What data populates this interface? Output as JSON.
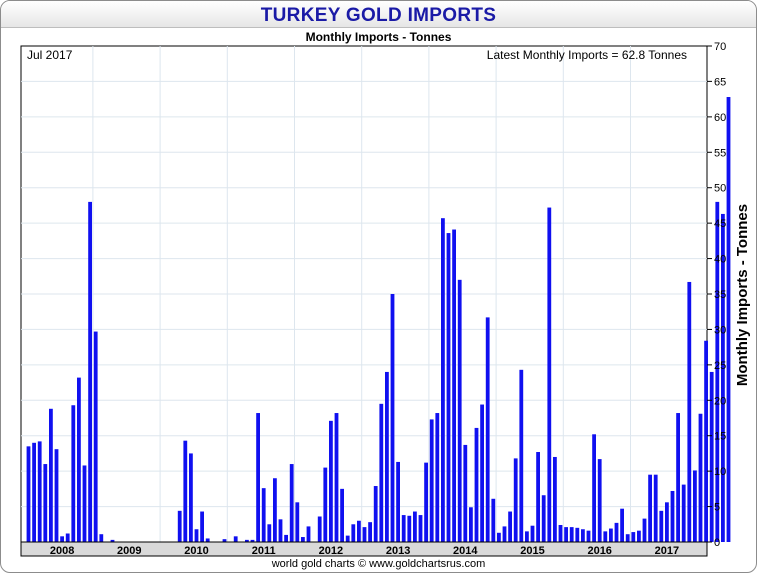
{
  "chart_data": {
    "type": "bar",
    "title": "TURKEY GOLD IMPORTS",
    "subtitle": "Monthly Imports - Tonnes",
    "date_label": "Jul 2017",
    "annotation": "Latest Monthly Imports = 62.8 Tonnes",
    "ylabel": "Monthly Imports - Tonnes",
    "credit": "world gold charts © www.goldchartsrus.com",
    "ylim": [
      0,
      70
    ],
    "yticks": [
      0,
      5,
      10,
      15,
      20,
      25,
      30,
      35,
      40,
      45,
      50,
      55,
      60,
      65,
      70
    ],
    "xticks": [
      "2008",
      "2009",
      "2010",
      "2011",
      "2012",
      "2013",
      "2014",
      "2015",
      "2016",
      "2017"
    ],
    "start_month": "2008-01",
    "bar_color": "#1010f0",
    "values": [
      13.5,
      14.0,
      14.2,
      11.0,
      18.8,
      13.1,
      0.8,
      1.2,
      19.3,
      23.2,
      10.8,
      48.0,
      29.7,
      1.1,
      0.0,
      0.3,
      0.0,
      0.0,
      0.0,
      0.0,
      0.0,
      0.0,
      0.0,
      0.0,
      0.0,
      0.0,
      0.0,
      4.4,
      14.3,
      12.5,
      1.8,
      4.3,
      0.5,
      0.0,
      0.0,
      0.4,
      0.0,
      0.8,
      0.0,
      0.3,
      0.3,
      18.2,
      7.6,
      2.5,
      9.0,
      3.2,
      1.0,
      11.0,
      5.6,
      0.7,
      2.2,
      0.0,
      3.6,
      10.5,
      17.1,
      18.2,
      7.5,
      0.9,
      2.5,
      3.0,
      2.1,
      2.8,
      7.9,
      19.5,
      24.0,
      35.0,
      11.3,
      3.8,
      3.7,
      4.3,
      3.8,
      11.2,
      17.3,
      18.2,
      45.7,
      43.6,
      44.1,
      37.0,
      13.7,
      4.9,
      16.1,
      19.4,
      31.7,
      6.1,
      1.3,
      2.2,
      4.3,
      11.8,
      24.3,
      1.5,
      2.3,
      12.7,
      6.6,
      47.2,
      12.0,
      2.4,
      2.1,
      2.1,
      2.0,
      1.8,
      1.6,
      15.2,
      11.7,
      1.5,
      1.9,
      2.7,
      4.7,
      1.1,
      1.4,
      1.6,
      3.3,
      9.5,
      9.5,
      4.4,
      5.6,
      7.2,
      18.2,
      8.1,
      36.7,
      10.1,
      18.1,
      28.4,
      24.0,
      48.0,
      46.3,
      62.8
    ]
  }
}
